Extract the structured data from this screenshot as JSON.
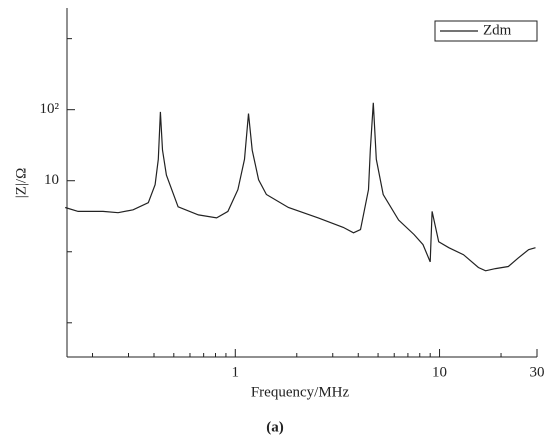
{
  "chart_data": {
    "type": "line",
    "log_x": true,
    "log_y": true,
    "x_label": "Frequency/MHz",
    "y_label": "|Z|/Ω",
    "caption": "(a)",
    "xlim": [
      0.15,
      30
    ],
    "ylim": [
      0.033,
      2700
    ],
    "xticks": [
      1,
      10,
      30
    ],
    "xminorticks": [
      0.2,
      0.3,
      0.4,
      0.5,
      0.6,
      0.7,
      0.8,
      0.9,
      2,
      3,
      4,
      5,
      6,
      7,
      8,
      9,
      20
    ],
    "yticks": [
      10,
      {
        "value": 100,
        "label": "10²"
      }
    ],
    "yminorticks": [
      0.1,
      1,
      1000
    ],
    "legend": "upper right",
    "series": [
      {
        "name": "Zdm",
        "color": "#222222",
        "x": [
          0.147,
          0.17,
          0.225,
          0.267,
          0.316,
          0.375,
          0.405,
          0.42,
          0.43,
          0.44,
          0.46,
          0.525,
          0.66,
          0.81,
          0.92,
          1.03,
          1.11,
          1.16,
          1.21,
          1.3,
          1.42,
          1.82,
          2.55,
          3.38,
          3.79,
          4.1,
          4.49,
          4.58,
          4.74,
          4.9,
          5.3,
          6.3,
          7.5,
          8.3,
          9.0,
          9.2,
          9.9,
          11.1,
          13.1,
          15.5,
          16.8,
          18.8,
          21.7,
          24.3,
          27.3,
          29.5
        ],
        "values": [
          4.2,
          3.7,
          3.7,
          3.55,
          3.9,
          4.9,
          8.8,
          20,
          93,
          27,
          12,
          4.3,
          3.3,
          3.0,
          3.7,
          7.5,
          20,
          88,
          27,
          10.3,
          6.4,
          4.2,
          3.0,
          2.2,
          1.85,
          2.05,
          7.5,
          27,
          125,
          20,
          6.4,
          2.8,
          1.75,
          1.26,
          0.72,
          3.7,
          1.38,
          1.14,
          0.91,
          0.6,
          0.54,
          0.58,
          0.62,
          0.82,
          1.07,
          1.14
        ]
      }
    ]
  }
}
